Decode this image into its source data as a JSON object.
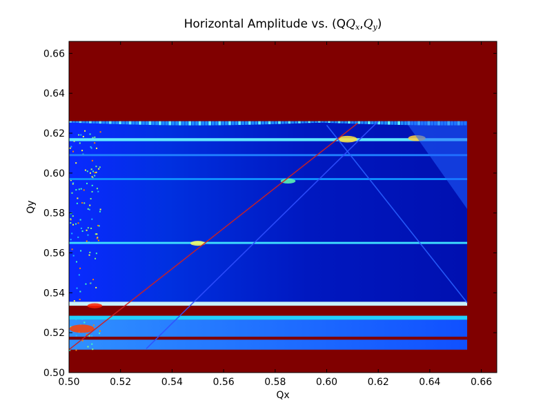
{
  "chart_data": {
    "type": "heatmap",
    "title": "Horizontal Amplitude vs. (Q",
    "title_math": {
      "x_sub": "x",
      "y_sub": "y",
      "q": "Q",
      "open": "(",
      "close": ")",
      "comma": ","
    },
    "xlabel": "Qx",
    "ylabel": "Qy",
    "xlim": [
      0.5,
      0.666
    ],
    "ylim": [
      0.5,
      0.666
    ],
    "xticks": [
      "0.50",
      "0.52",
      "0.54",
      "0.56",
      "0.58",
      "0.60",
      "0.62",
      "0.64",
      "0.66"
    ],
    "yticks": [
      "0.50",
      "0.52",
      "0.54",
      "0.56",
      "0.58",
      "0.60",
      "0.62",
      "0.64",
      "0.66"
    ],
    "colormap": "jet",
    "background_color": "#800000",
    "data_region": {
      "x": [
        0.5,
        0.6545
      ],
      "y": [
        0.5115,
        0.626
      ]
    },
    "horizontal_bands": [
      {
        "y": [
          0.5335,
          0.5355
        ],
        "color": "#c8f0ff"
      },
      {
        "y": [
          0.5285,
          0.5335
        ],
        "color": "#800000"
      },
      {
        "y": [
          0.5265,
          0.5285
        ],
        "color": "#20d0ff"
      },
      {
        "y": [
          0.5165,
          0.518
        ],
        "color": "#800000"
      },
      {
        "y": [
          0.5645,
          0.5655
        ],
        "color": "#40e0ff"
      },
      {
        "y": [
          0.616,
          0.6175
        ],
        "color": "#60e8ff"
      },
      {
        "y": [
          0.6085,
          0.6095
        ],
        "color": "#2080ff"
      },
      {
        "y": [
          0.5965,
          0.5975
        ],
        "color": "#1090ff"
      }
    ],
    "diagonals": [
      {
        "from": [
          0.5,
          0.5115
        ],
        "to": [
          0.612,
          0.625
        ],
        "color": "#d02020"
      },
      {
        "from": [
          0.53,
          0.512
        ],
        "to": [
          0.62,
          0.626
        ],
        "color": "#3050ff"
      },
      {
        "from": [
          0.6,
          0.624
        ],
        "to": [
          0.6545,
          0.535
        ],
        "color": "#2a60ff"
      }
    ],
    "colors": {
      "low": "#00008f",
      "mid": "#0040ff",
      "high": "#800000"
    }
  }
}
